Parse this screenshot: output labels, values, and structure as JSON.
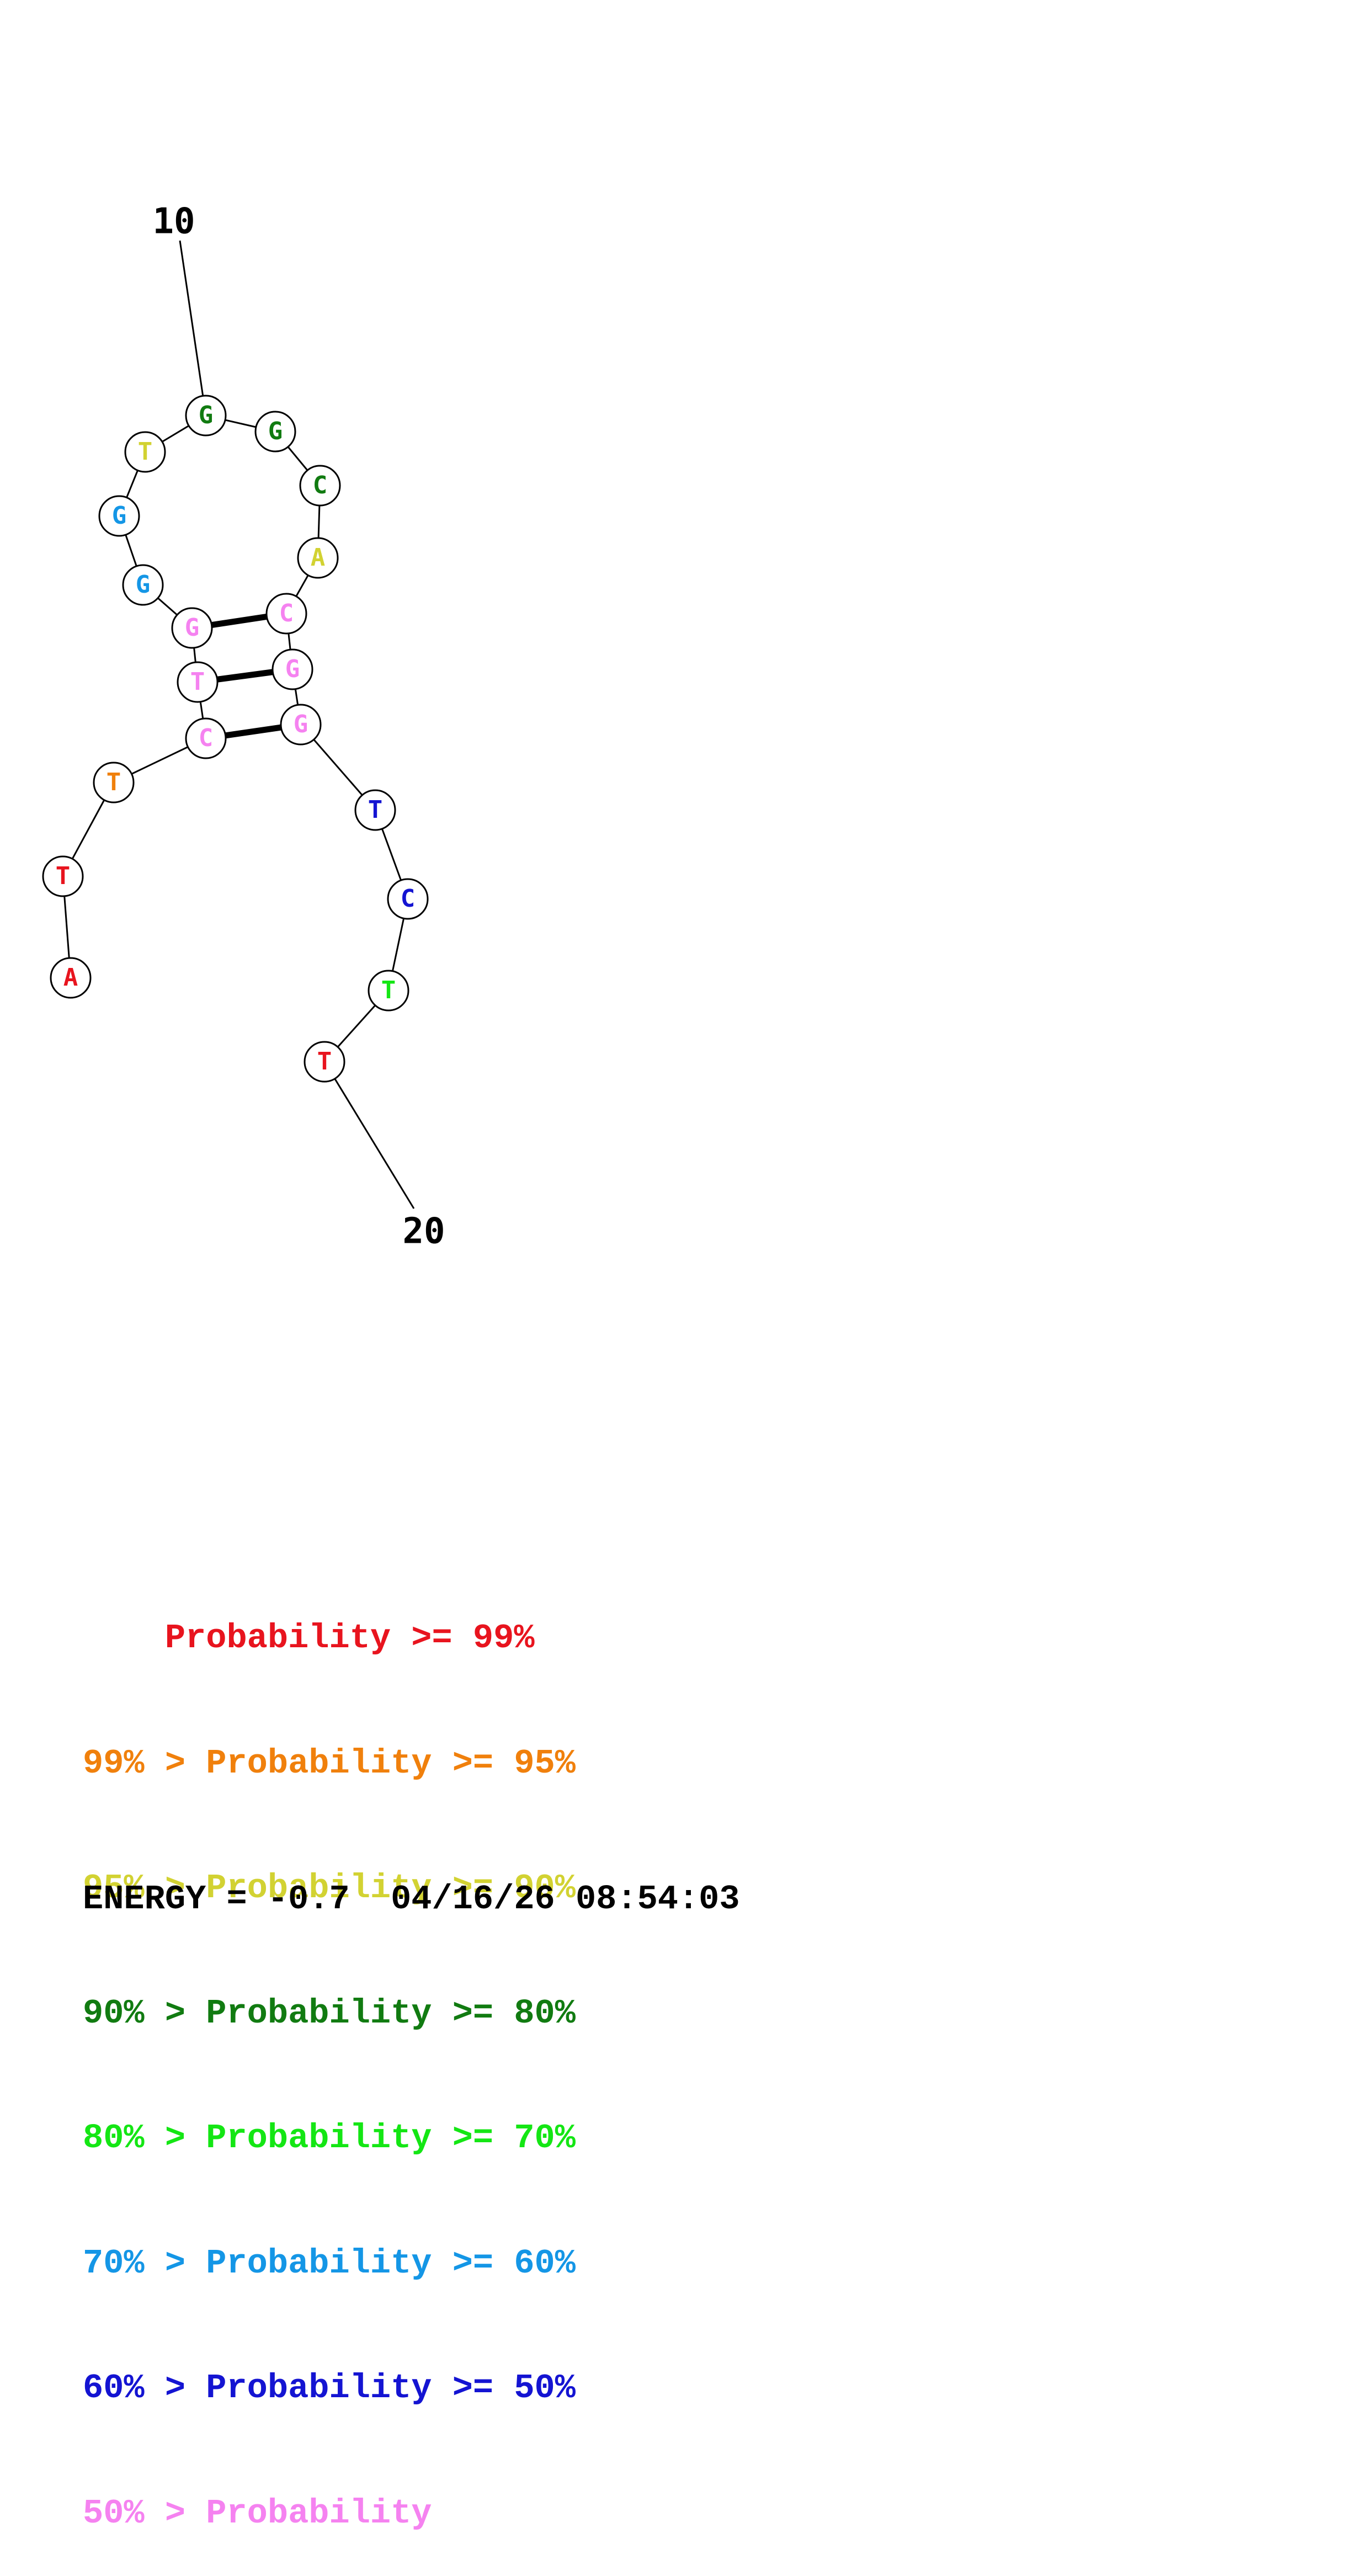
{
  "structure": {
    "nucleotides": [
      {
        "base": "A",
        "color": "#e8141e"
      },
      {
        "base": "T",
        "color": "#e8141e"
      },
      {
        "base": "T",
        "color": "#f0800c"
      },
      {
        "base": "C",
        "color": "#f582f0"
      },
      {
        "base": "T",
        "color": "#f582f0"
      },
      {
        "base": "G",
        "color": "#f582f0"
      },
      {
        "base": "G",
        "color": "#1496e6"
      },
      {
        "base": "G",
        "color": "#1496e6"
      },
      {
        "base": "T",
        "color": "#d2d232"
      },
      {
        "base": "G",
        "color": "#117b11"
      },
      {
        "base": "G",
        "color": "#117b11"
      },
      {
        "base": "C",
        "color": "#117b11"
      },
      {
        "base": "A",
        "color": "#d2d232"
      },
      {
        "base": "C",
        "color": "#f582f0"
      },
      {
        "base": "G",
        "color": "#f582f0"
      },
      {
        "base": "G",
        "color": "#f582f0"
      },
      {
        "base": "T",
        "color": "#1414d2"
      },
      {
        "base": "C",
        "color": "#1414d2"
      },
      {
        "base": "T",
        "color": "#14e614"
      },
      {
        "base": "T",
        "color": "#e8141e"
      }
    ],
    "base_pairs": [
      [
        4,
        16
      ],
      [
        5,
        15
      ],
      [
        6,
        14
      ]
    ],
    "position_labels": [
      {
        "text": "10",
        "index": 10
      },
      {
        "text": "20",
        "index": 20
      }
    ]
  },
  "legend": [
    {
      "prefix": "    ",
      "text": "Probability >= 99%",
      "color": "#e8141e"
    },
    {
      "prefix": "99% > ",
      "text": "Probability >= 95%",
      "color": "#f0800c"
    },
    {
      "prefix": "95% > ",
      "text": "Probability >= 90%",
      "color": "#d2d232"
    },
    {
      "prefix": "90% > ",
      "text": "Probability >= 80%",
      "color": "#117b11"
    },
    {
      "prefix": "80% > ",
      "text": "Probability >= 70%",
      "color": "#14e614"
    },
    {
      "prefix": "70% > ",
      "text": "Probability >= 60%",
      "color": "#1496e6"
    },
    {
      "prefix": "60% > ",
      "text": "Probability >= 50%",
      "color": "#1414d2"
    },
    {
      "prefix": "50% > ",
      "text": "Probability",
      "color": "#f582f0"
    }
  ],
  "energy": "ENERGY = -0.7  04/16/26 08:54:03"
}
